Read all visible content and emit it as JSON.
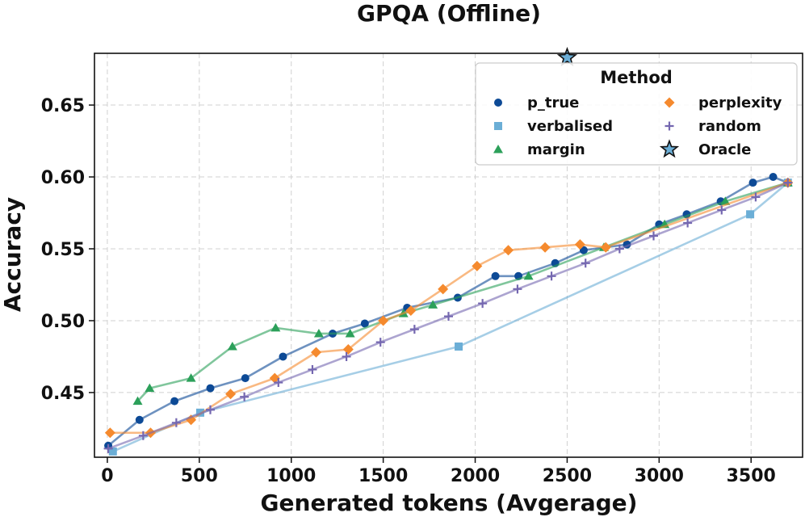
{
  "chart_data": {
    "type": "line",
    "title": "GPQA (Offline)",
    "xlabel": "Generated tokens (Avgerage)",
    "ylabel": "Accuracy",
    "xlim": [
      -70,
      3780
    ],
    "ylim": [
      0.405,
      0.686
    ],
    "xticks": [
      0,
      500,
      1000,
      1500,
      2000,
      2500,
      3000,
      3500
    ],
    "xtick_labels": [
      "0",
      "500",
      "1000",
      "1500",
      "2000",
      "2500",
      "3000",
      "3500"
    ],
    "yticks": [
      0.45,
      0.5,
      0.55,
      0.6,
      0.65
    ],
    "ytick_labels": [
      "0.45",
      "0.50",
      "0.55",
      "0.60",
      "0.65"
    ],
    "grid": true,
    "legend": {
      "title": "Method",
      "position": "top-right",
      "items": [
        "p_true",
        "perplexity",
        "verbalised",
        "random",
        "margin",
        "Oracle"
      ]
    },
    "series": [
      {
        "name": "p_true",
        "color": "#0d4a96",
        "marker": "circle",
        "x": [
          5,
          175,
          365,
          560,
          750,
          955,
          1225,
          1400,
          1630,
          1905,
          2110,
          2235,
          2435,
          2590,
          2825,
          3000,
          3150,
          3335,
          3510,
          3620,
          3700
        ],
        "y": [
          0.413,
          0.431,
          0.444,
          0.453,
          0.46,
          0.475,
          0.491,
          0.498,
          0.509,
          0.516,
          0.531,
          0.531,
          0.54,
          0.549,
          0.553,
          0.567,
          0.574,
          0.583,
          0.596,
          0.6,
          0.596
        ]
      },
      {
        "name": "verbalised",
        "color": "#6baed6",
        "marker": "square",
        "x": [
          30,
          505,
          1910,
          3495,
          3700
        ],
        "y": [
          0.409,
          0.436,
          0.482,
          0.574,
          0.596
        ]
      },
      {
        "name": "margin",
        "color": "#2ca05a",
        "marker": "triangle",
        "x": [
          165,
          230,
          455,
          680,
          915,
          1150,
          1320,
          1610,
          1770,
          2290,
          2700,
          3030,
          3360,
          3700
        ],
        "y": [
          0.444,
          0.453,
          0.46,
          0.482,
          0.495,
          0.491,
          0.491,
          0.505,
          0.511,
          0.531,
          0.551,
          0.567,
          0.583,
          0.596
        ]
      },
      {
        "name": "perplexity",
        "color": "#f58a2e",
        "marker": "diamond",
        "x": [
          15,
          235,
          455,
          670,
          910,
          1135,
          1310,
          1500,
          1650,
          1825,
          2010,
          2180,
          2380,
          2570,
          2710,
          3700
        ],
        "y": [
          0.422,
          0.422,
          0.431,
          0.449,
          0.46,
          0.478,
          0.48,
          0.5,
          0.507,
          0.522,
          0.538,
          0.549,
          0.551,
          0.553,
          0.551,
          0.596
        ]
      },
      {
        "name": "random",
        "color": "#7467b0",
        "marker": "plus",
        "x": [
          5,
          195,
          375,
          560,
          745,
          930,
          1115,
          1300,
          1485,
          1670,
          1855,
          2040,
          2230,
          2415,
          2600,
          2785,
          2970,
          3155,
          3340,
          3525,
          3700
        ],
        "y": [
          0.411,
          0.42,
          0.429,
          0.438,
          0.447,
          0.457,
          0.466,
          0.475,
          0.485,
          0.494,
          0.503,
          0.512,
          0.522,
          0.531,
          0.54,
          0.55,
          0.559,
          0.568,
          0.577,
          0.586,
          0.596
        ]
      }
    ],
    "oracle": {
      "name": "Oracle",
      "color": "#6baed6",
      "x": 2500,
      "y": 0.683
    }
  }
}
